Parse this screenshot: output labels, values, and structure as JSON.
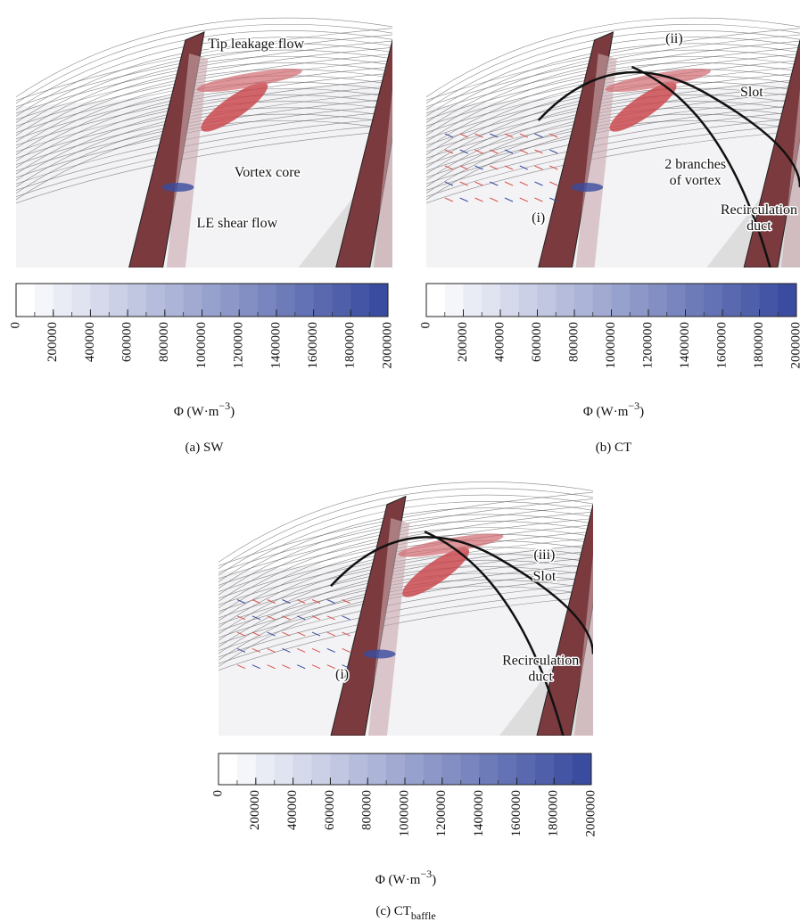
{
  "panels": [
    {
      "image": {
        "annotations": [
          {
            "lines": [
              "Tip leakage flow"
            ]
          },
          {
            "lines": [
              "Vortex core"
            ]
          },
          {
            "lines": [
              "LE shear flow"
            ]
          }
        ]
      },
      "colorbar": {
        "lim": [
          0,
          2000000
        ],
        "ticks": [
          0,
          200000,
          400000,
          600000,
          800000,
          1000000,
          1200000,
          1400000,
          1600000,
          1800000,
          2000000
        ],
        "steps": 20,
        "colors": [
          "#ffffff",
          "#3a4ca0"
        ],
        "label": {
          "text": "Φ (W·m",
          "sup": "−3",
          "end": ")"
        }
      },
      "caption": {
        "text": "(a) SW"
      }
    },
    {
      "image": {
        "annotations": [
          {
            "lines": [
              "(ii)"
            ]
          },
          {
            "lines": [
              "Slot"
            ]
          },
          {
            "lines": [
              "2 branches",
              "of vortex"
            ]
          },
          {
            "lines": [
              "(i)"
            ]
          },
          {
            "lines": [
              "Recirculation",
              "duct"
            ]
          }
        ]
      },
      "colorbar": {
        "lim": [
          0,
          2000000
        ],
        "ticks": [
          0,
          200000,
          400000,
          600000,
          800000,
          1000000,
          1200000,
          1400000,
          1600000,
          1800000,
          2000000
        ],
        "steps": 20,
        "colors": [
          "#ffffff",
          "#3a4ca0"
        ],
        "label": {
          "text": "Φ (W·m",
          "sup": "−3",
          "end": ")"
        }
      },
      "caption": {
        "text": "(b) CT"
      }
    },
    {
      "image": {
        "annotations": [
          {
            "lines": [
              "(iii)"
            ]
          },
          {
            "lines": [
              "Slot"
            ]
          },
          {
            "lines": [
              "(i)"
            ]
          },
          {
            "lines": [
              "Recirculation",
              "duct"
            ]
          }
        ]
      },
      "colorbar": {
        "lim": [
          0,
          2000000
        ],
        "ticks": [
          0,
          200000,
          400000,
          600000,
          800000,
          1000000,
          1200000,
          1400000,
          1600000,
          1800000,
          2000000
        ],
        "steps": 20,
        "colors": [
          "#ffffff",
          "#3a4ca0"
        ],
        "label": {
          "text": "Φ (W·m",
          "sup": "−3",
          "end": ")"
        }
      },
      "caption": {
        "text": "(c) CT",
        "sub": "baffle"
      }
    }
  ]
}
